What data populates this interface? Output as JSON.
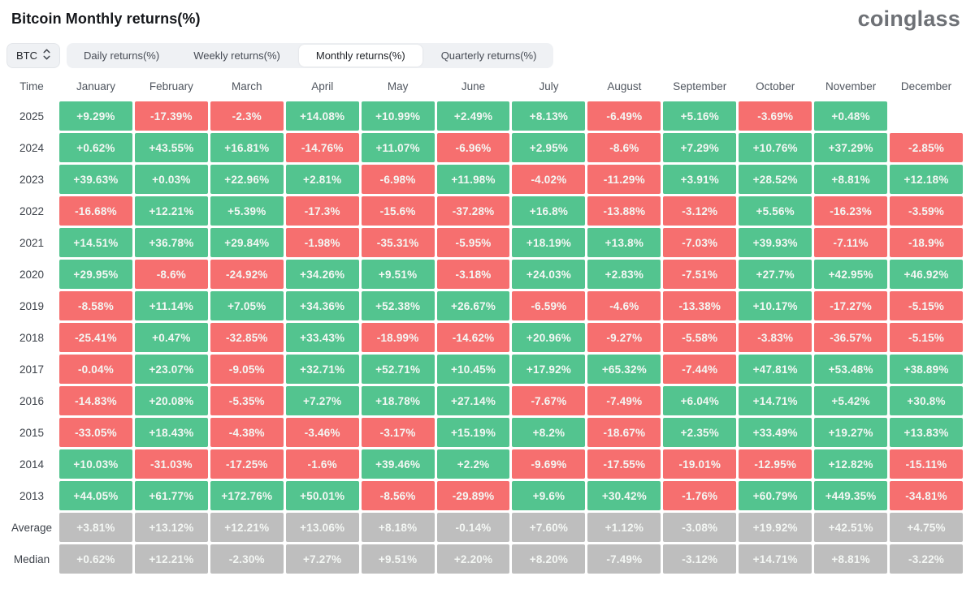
{
  "header": {
    "title": "Bitcoin Monthly returns(%)",
    "brand": "coinglass"
  },
  "toolbar": {
    "symbol": {
      "label": "BTC",
      "icon": "updown-chevrons-icon"
    },
    "tabs": [
      {
        "label": "Daily returns(%)",
        "active": false
      },
      {
        "label": "Weekly returns(%)",
        "active": false
      },
      {
        "label": "Monthly returns(%)",
        "active": true
      },
      {
        "label": "Quarterly returns(%)",
        "active": false
      }
    ]
  },
  "table": {
    "time_header": "Time",
    "months": [
      "January",
      "February",
      "March",
      "April",
      "May",
      "June",
      "July",
      "August",
      "September",
      "October",
      "November",
      "December"
    ],
    "rows": [
      {
        "label": "2025",
        "kind": "year",
        "values": [
          "+9.29%",
          "-17.39%",
          "-2.3%",
          "+14.08%",
          "+10.99%",
          "+2.49%",
          "+8.13%",
          "-6.49%",
          "+5.16%",
          "-3.69%",
          "+0.48%",
          null
        ]
      },
      {
        "label": "2024",
        "kind": "year",
        "values": [
          "+0.62%",
          "+43.55%",
          "+16.81%",
          "-14.76%",
          "+11.07%",
          "-6.96%",
          "+2.95%",
          "-8.6%",
          "+7.29%",
          "+10.76%",
          "+37.29%",
          "-2.85%"
        ]
      },
      {
        "label": "2023",
        "kind": "year",
        "values": [
          "+39.63%",
          "+0.03%",
          "+22.96%",
          "+2.81%",
          "-6.98%",
          "+11.98%",
          "-4.02%",
          "-11.29%",
          "+3.91%",
          "+28.52%",
          "+8.81%",
          "+12.18%"
        ]
      },
      {
        "label": "2022",
        "kind": "year",
        "values": [
          "-16.68%",
          "+12.21%",
          "+5.39%",
          "-17.3%",
          "-15.6%",
          "-37.28%",
          "+16.8%",
          "-13.88%",
          "-3.12%",
          "+5.56%",
          "-16.23%",
          "-3.59%"
        ]
      },
      {
        "label": "2021",
        "kind": "year",
        "values": [
          "+14.51%",
          "+36.78%",
          "+29.84%",
          "-1.98%",
          "-35.31%",
          "-5.95%",
          "+18.19%",
          "+13.8%",
          "-7.03%",
          "+39.93%",
          "-7.11%",
          "-18.9%"
        ]
      },
      {
        "label": "2020",
        "kind": "year",
        "values": [
          "+29.95%",
          "-8.6%",
          "-24.92%",
          "+34.26%",
          "+9.51%",
          "-3.18%",
          "+24.03%",
          "+2.83%",
          "-7.51%",
          "+27.7%",
          "+42.95%",
          "+46.92%"
        ]
      },
      {
        "label": "2019",
        "kind": "year",
        "values": [
          "-8.58%",
          "+11.14%",
          "+7.05%",
          "+34.36%",
          "+52.38%",
          "+26.67%",
          "-6.59%",
          "-4.6%",
          "-13.38%",
          "+10.17%",
          "-17.27%",
          "-5.15%"
        ]
      },
      {
        "label": "2018",
        "kind": "year",
        "values": [
          "-25.41%",
          "+0.47%",
          "-32.85%",
          "+33.43%",
          "-18.99%",
          "-14.62%",
          "+20.96%",
          "-9.27%",
          "-5.58%",
          "-3.83%",
          "-36.57%",
          "-5.15%"
        ]
      },
      {
        "label": "2017",
        "kind": "year",
        "values": [
          "-0.04%",
          "+23.07%",
          "-9.05%",
          "+32.71%",
          "+52.71%",
          "+10.45%",
          "+17.92%",
          "+65.32%",
          "-7.44%",
          "+47.81%",
          "+53.48%",
          "+38.89%"
        ]
      },
      {
        "label": "2016",
        "kind": "year",
        "values": [
          "-14.83%",
          "+20.08%",
          "-5.35%",
          "+7.27%",
          "+18.78%",
          "+27.14%",
          "-7.67%",
          "-7.49%",
          "+6.04%",
          "+14.71%",
          "+5.42%",
          "+30.8%"
        ]
      },
      {
        "label": "2015",
        "kind": "year",
        "values": [
          "-33.05%",
          "+18.43%",
          "-4.38%",
          "-3.46%",
          "-3.17%",
          "+15.19%",
          "+8.2%",
          "-18.67%",
          "+2.35%",
          "+33.49%",
          "+19.27%",
          "+13.83%"
        ]
      },
      {
        "label": "2014",
        "kind": "year",
        "values": [
          "+10.03%",
          "-31.03%",
          "-17.25%",
          "-1.6%",
          "+39.46%",
          "+2.2%",
          "-9.69%",
          "-17.55%",
          "-19.01%",
          "-12.95%",
          "+12.82%",
          "-15.11%"
        ]
      },
      {
        "label": "2013",
        "kind": "year",
        "values": [
          "+44.05%",
          "+61.77%",
          "+172.76%",
          "+50.01%",
          "-8.56%",
          "-29.89%",
          "+9.6%",
          "+30.42%",
          "-1.76%",
          "+60.79%",
          "+449.35%",
          "-34.81%"
        ]
      },
      {
        "label": "Average",
        "kind": "summary",
        "values": [
          "+3.81%",
          "+13.12%",
          "+12.21%",
          "+13.06%",
          "+8.18%",
          "-0.14%",
          "+7.60%",
          "+1.12%",
          "-3.08%",
          "+19.92%",
          "+42.51%",
          "+4.75%"
        ]
      },
      {
        "label": "Median",
        "kind": "summary",
        "values": [
          "+0.62%",
          "+12.21%",
          "-2.30%",
          "+7.27%",
          "+9.51%",
          "+2.20%",
          "+8.20%",
          "-7.49%",
          "-3.12%",
          "+14.71%",
          "+8.81%",
          "-3.22%"
        ]
      }
    ]
  },
  "colors": {
    "positive": "#53c48f",
    "negative": "#f66f6f",
    "summary_bg": "#bebebe",
    "cell_text": "#f4f7f4"
  }
}
